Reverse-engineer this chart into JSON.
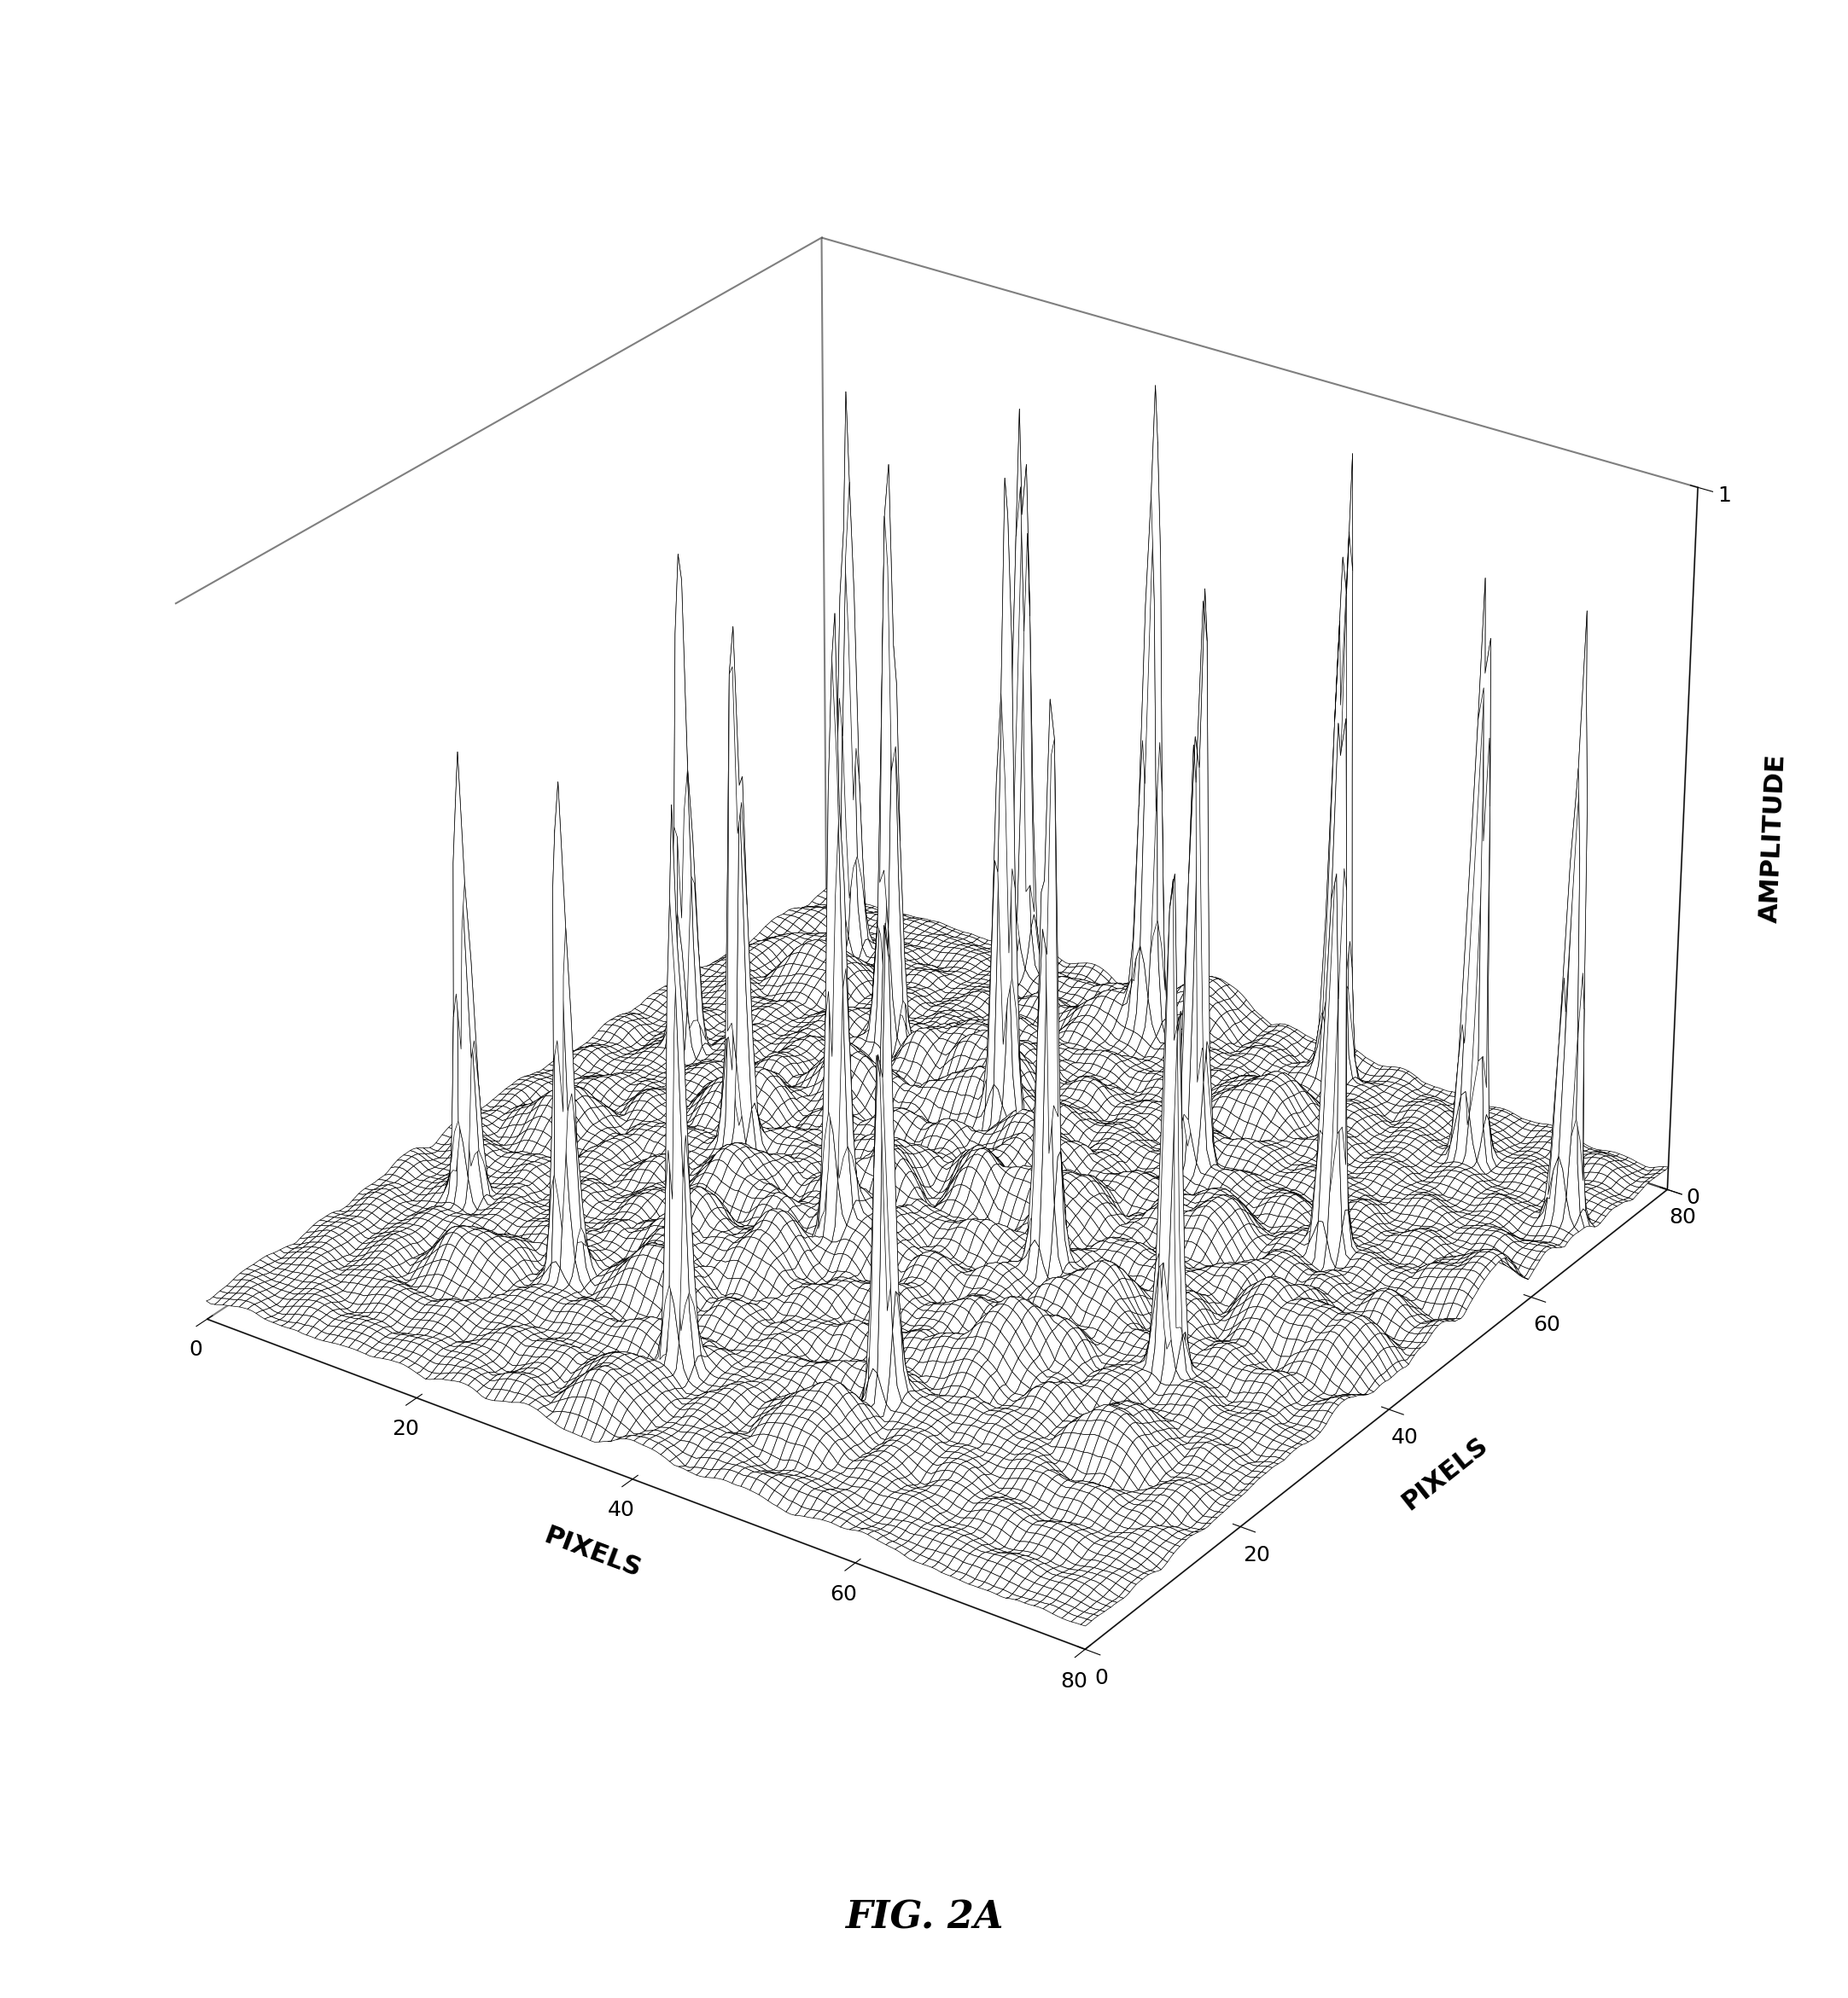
{
  "title": "FIG. 2A",
  "xlabel": "PIXELS",
  "ylabel": "PIXELS",
  "zlabel": "AMPLITUDE",
  "xlim": [
    0,
    80
  ],
  "ylim": [
    0,
    80
  ],
  "zlim": [
    0,
    1
  ],
  "xticks": [
    0,
    20,
    40,
    60,
    80
  ],
  "yticks": [
    0,
    20,
    40,
    60,
    80
  ],
  "zticks": [
    0,
    1
  ],
  "grid_size": 200,
  "peak_positions": [
    [
      8,
      72
    ],
    [
      8,
      50
    ],
    [
      8,
      22
    ],
    [
      22,
      76
    ],
    [
      22,
      58
    ],
    [
      22,
      38
    ],
    [
      22,
      16
    ],
    [
      37,
      72
    ],
    [
      37,
      52
    ],
    [
      37,
      30
    ],
    [
      37,
      10
    ],
    [
      52,
      76
    ],
    [
      52,
      56
    ],
    [
      52,
      36
    ],
    [
      52,
      15
    ],
    [
      67,
      72
    ],
    [
      67,
      52
    ],
    [
      67,
      30
    ],
    [
      78,
      68
    ]
  ],
  "peak_heights": [
    0.82,
    0.75,
    0.65,
    0.93,
    0.88,
    0.8,
    0.7,
    1.0,
    0.95,
    0.88,
    0.78,
    0.98,
    0.92,
    0.84,
    0.74,
    0.91,
    0.85,
    0.78,
    0.86
  ],
  "peak_sigma": 0.6,
  "noise_amplitude": 0.055,
  "background_color": "white",
  "line_color": "black",
  "title_fontsize": 32,
  "label_fontsize": 22,
  "tick_fontsize": 18,
  "elev": 28,
  "azim": -55,
  "linewidth": 0.5
}
